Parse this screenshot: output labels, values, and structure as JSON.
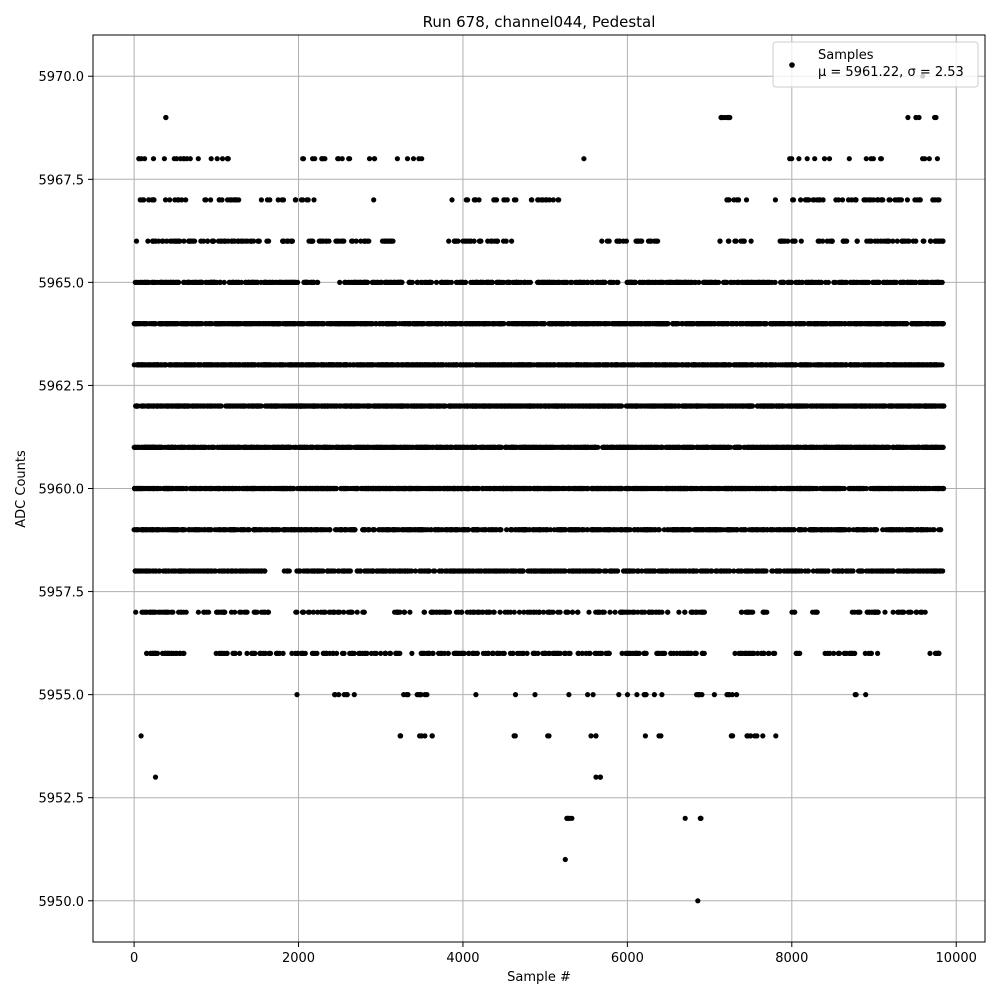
{
  "chart_data": {
    "type": "scatter",
    "title": "Run 678, channel044, Pedestal",
    "xlabel": "Sample #",
    "ylabel": "ADC Counts",
    "xlim": [
      -500,
      10350
    ],
    "ylim": [
      5949.0,
      5971.0
    ],
    "xticks": [
      0,
      2000,
      4000,
      6000,
      8000,
      10000
    ],
    "xtick_labels": [
      "0",
      "2000",
      "4000",
      "6000",
      "8000",
      "10000"
    ],
    "yticks": [
      5950.0,
      5952.5,
      5955.0,
      5957.5,
      5960.0,
      5962.5,
      5965.0,
      5967.5,
      5970.0
    ],
    "ytick_labels": [
      "5950.0",
      "5952.5",
      "5955.0",
      "5957.5",
      "5960.0",
      "5962.5",
      "5965.0",
      "5967.5",
      "5970.0"
    ],
    "grid": true,
    "legend_position": "top-right",
    "series": [
      {
        "name": "Samples",
        "legend_line2": "μ = 5961.22, σ = 2.53",
        "color": "#000000",
        "marker": "circle",
        "levels": [
          {
            "y": 5970,
            "count": 1,
            "x_ranges": [
              [
                9580,
                9600
              ]
            ]
          },
          {
            "y": 5969,
            "count": 16,
            "x_ranges": [
              [
                370,
                400
              ],
              [
                830,
                850
              ],
              [
                7100,
                7300
              ],
              [
                8290,
                8310
              ],
              [
                8950,
                8970
              ],
              [
                9350,
                9420
              ],
              [
                9500,
                9550
              ],
              [
                9680,
                9760
              ]
            ]
          },
          {
            "y": 5968,
            "count": 60,
            "x_ranges": [
              [
                0,
                1200
              ],
              [
                2000,
                3500
              ],
              [
                4300,
                4350
              ],
              [
                5450,
                5500
              ],
              [
                7950,
                9850
              ]
            ]
          },
          {
            "y": 5967,
            "count": 140,
            "x_ranges": [
              [
                0,
                1300
              ],
              [
                1450,
                2200
              ],
              [
                2850,
                3000
              ],
              [
                3850,
                5200
              ],
              [
                5700,
                5750
              ],
              [
                7100,
                7500
              ],
              [
                7800,
                9850
              ]
            ]
          },
          {
            "y": 5966,
            "count": 230,
            "x_ranges": [
              [
                0,
                1950
              ],
              [
                2100,
                3150
              ],
              [
                3800,
                4600
              ],
              [
                5650,
                6400
              ],
              [
                7050,
                7550
              ],
              [
                7800,
                9850
              ]
            ]
          },
          {
            "y": 5965,
            "count": 700,
            "x_ranges": [
              [
                0,
                2250
              ],
              [
                2500,
                6850
              ],
              [
                6850,
                9850
              ]
            ]
          },
          {
            "y": 5964,
            "count": 1100,
            "x_ranges": [
              [
                0,
                9850
              ]
            ]
          },
          {
            "y": 5963,
            "count": 1300,
            "x_ranges": [
              [
                0,
                9850
              ]
            ]
          },
          {
            "y": 5962,
            "count": 1400,
            "x_ranges": [
              [
                0,
                9850
              ]
            ]
          },
          {
            "y": 5961,
            "count": 1400,
            "x_ranges": [
              [
                0,
                9850
              ]
            ]
          },
          {
            "y": 5960,
            "count": 1300,
            "x_ranges": [
              [
                0,
                9850
              ]
            ]
          },
          {
            "y": 5959,
            "count": 900,
            "x_ranges": [
              [
                0,
                9850
              ]
            ]
          },
          {
            "y": 5958,
            "count": 700,
            "x_ranges": [
              [
                0,
                1600
              ],
              [
                1800,
                9850
              ]
            ]
          },
          {
            "y": 5957,
            "count": 300,
            "x_ranges": [
              [
                0,
                1650
              ],
              [
                1950,
                2800
              ],
              [
                3150,
                6950
              ],
              [
                7350,
                7700
              ],
              [
                8000,
                8050
              ],
              [
                8250,
                8350
              ],
              [
                8700,
                9650
              ]
            ]
          },
          {
            "y": 5956,
            "count": 330,
            "x_ranges": [
              [
                150,
                650
              ],
              [
                950,
                2500
              ],
              [
                2500,
                3600
              ],
              [
                3600,
                6950
              ],
              [
                7300,
                7800
              ],
              [
                8050,
                8100
              ],
              [
                8400,
                9050
              ],
              [
                9650,
                9850
              ]
            ]
          },
          {
            "y": 5955,
            "count": 45,
            "x_ranges": [
              [
                1250,
                1300
              ],
              [
                1550,
                1600
              ],
              [
                1950,
                2000
              ],
              [
                2350,
                2700
              ],
              [
                3200,
                3700
              ],
              [
                3900,
                4300
              ],
              [
                4550,
                4900
              ],
              [
                5250,
                5600
              ],
              [
                5800,
                6550
              ],
              [
                6750,
                7350
              ],
              [
                7800,
                7830
              ],
              [
                8700,
                8900
              ]
            ]
          },
          {
            "y": 5954,
            "count": 30,
            "x_ranges": [
              [
                80,
                100
              ],
              [
                580,
                600
              ],
              [
                1590,
                1610
              ],
              [
                1800,
                1820
              ],
              [
                3200,
                3300
              ],
              [
                3450,
                3650
              ],
              [
                4250,
                4270
              ],
              [
                4550,
                4700
              ],
              [
                5000,
                5100
              ],
              [
                5300,
                5350
              ],
              [
                5550,
                5650
              ],
              [
                6150,
                6250
              ],
              [
                6350,
                6450
              ],
              [
                6800,
                6850
              ],
              [
                7250,
                7300
              ],
              [
                7450,
                7650
              ],
              [
                7800,
                7820
              ]
            ]
          },
          {
            "y": 5953,
            "count": 4,
            "x_ranges": [
              [
                250,
                270
              ],
              [
                5600,
                5680
              ]
            ]
          },
          {
            "y": 5952,
            "count": 9,
            "x_ranges": [
              [
                2750,
                2770
              ],
              [
                3250,
                3290
              ],
              [
                4450,
                4470
              ],
              [
                5250,
                5350
              ],
              [
                6150,
                6170
              ],
              [
                6700,
                6730
              ],
              [
                6880,
                6910
              ]
            ]
          },
          {
            "y": 5951,
            "count": 1,
            "x_ranges": [
              [
                5240,
                5260
              ]
            ]
          },
          {
            "y": 5950,
            "count": 1,
            "x_ranges": [
              [
                6840,
                6860
              ]
            ]
          }
        ]
      }
    ]
  }
}
